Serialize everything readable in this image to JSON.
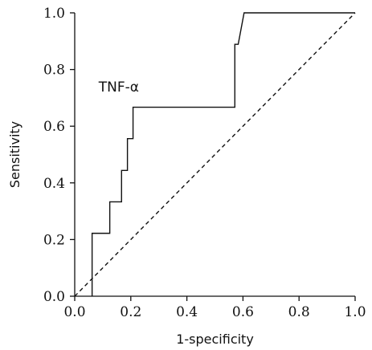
{
  "chart_data": {
    "type": "line",
    "xlabel": "1-specificity",
    "ylabel": "Sensitivity",
    "xlim": [
      0.0,
      1.0
    ],
    "ylim": [
      0.0,
      1.0
    ],
    "x_ticks": [
      "0.0",
      "0.2",
      "0.4",
      "0.6",
      "0.8",
      "1.0"
    ],
    "y_ticks": [
      "0.0",
      "0.2",
      "0.4",
      "0.6",
      "0.8",
      "1.0"
    ],
    "grid": false,
    "legend": "none",
    "series": [
      {
        "name": "TNF-α",
        "style": "solid",
        "color": "#111111",
        "points": [
          [
            0.062,
            0.0
          ],
          [
            0.062,
            0.222
          ],
          [
            0.125,
            0.222
          ],
          [
            0.125,
            0.333
          ],
          [
            0.167,
            0.333
          ],
          [
            0.167,
            0.444
          ],
          [
            0.188,
            0.444
          ],
          [
            0.188,
            0.556
          ],
          [
            0.208,
            0.556
          ],
          [
            0.208,
            0.667
          ],
          [
            0.571,
            0.667
          ],
          [
            0.571,
            0.889
          ],
          [
            0.583,
            0.889
          ],
          [
            0.604,
            1.0
          ],
          [
            1.0,
            1.0
          ]
        ]
      },
      {
        "name": "",
        "style": "dashed",
        "color": "#111111",
        "points": [
          [
            0.0,
            0.0
          ],
          [
            1.0,
            1.0
          ]
        ]
      }
    ],
    "annotations": [
      {
        "text": "TNF-α",
        "x": 0.2,
        "y": 0.74
      }
    ]
  }
}
